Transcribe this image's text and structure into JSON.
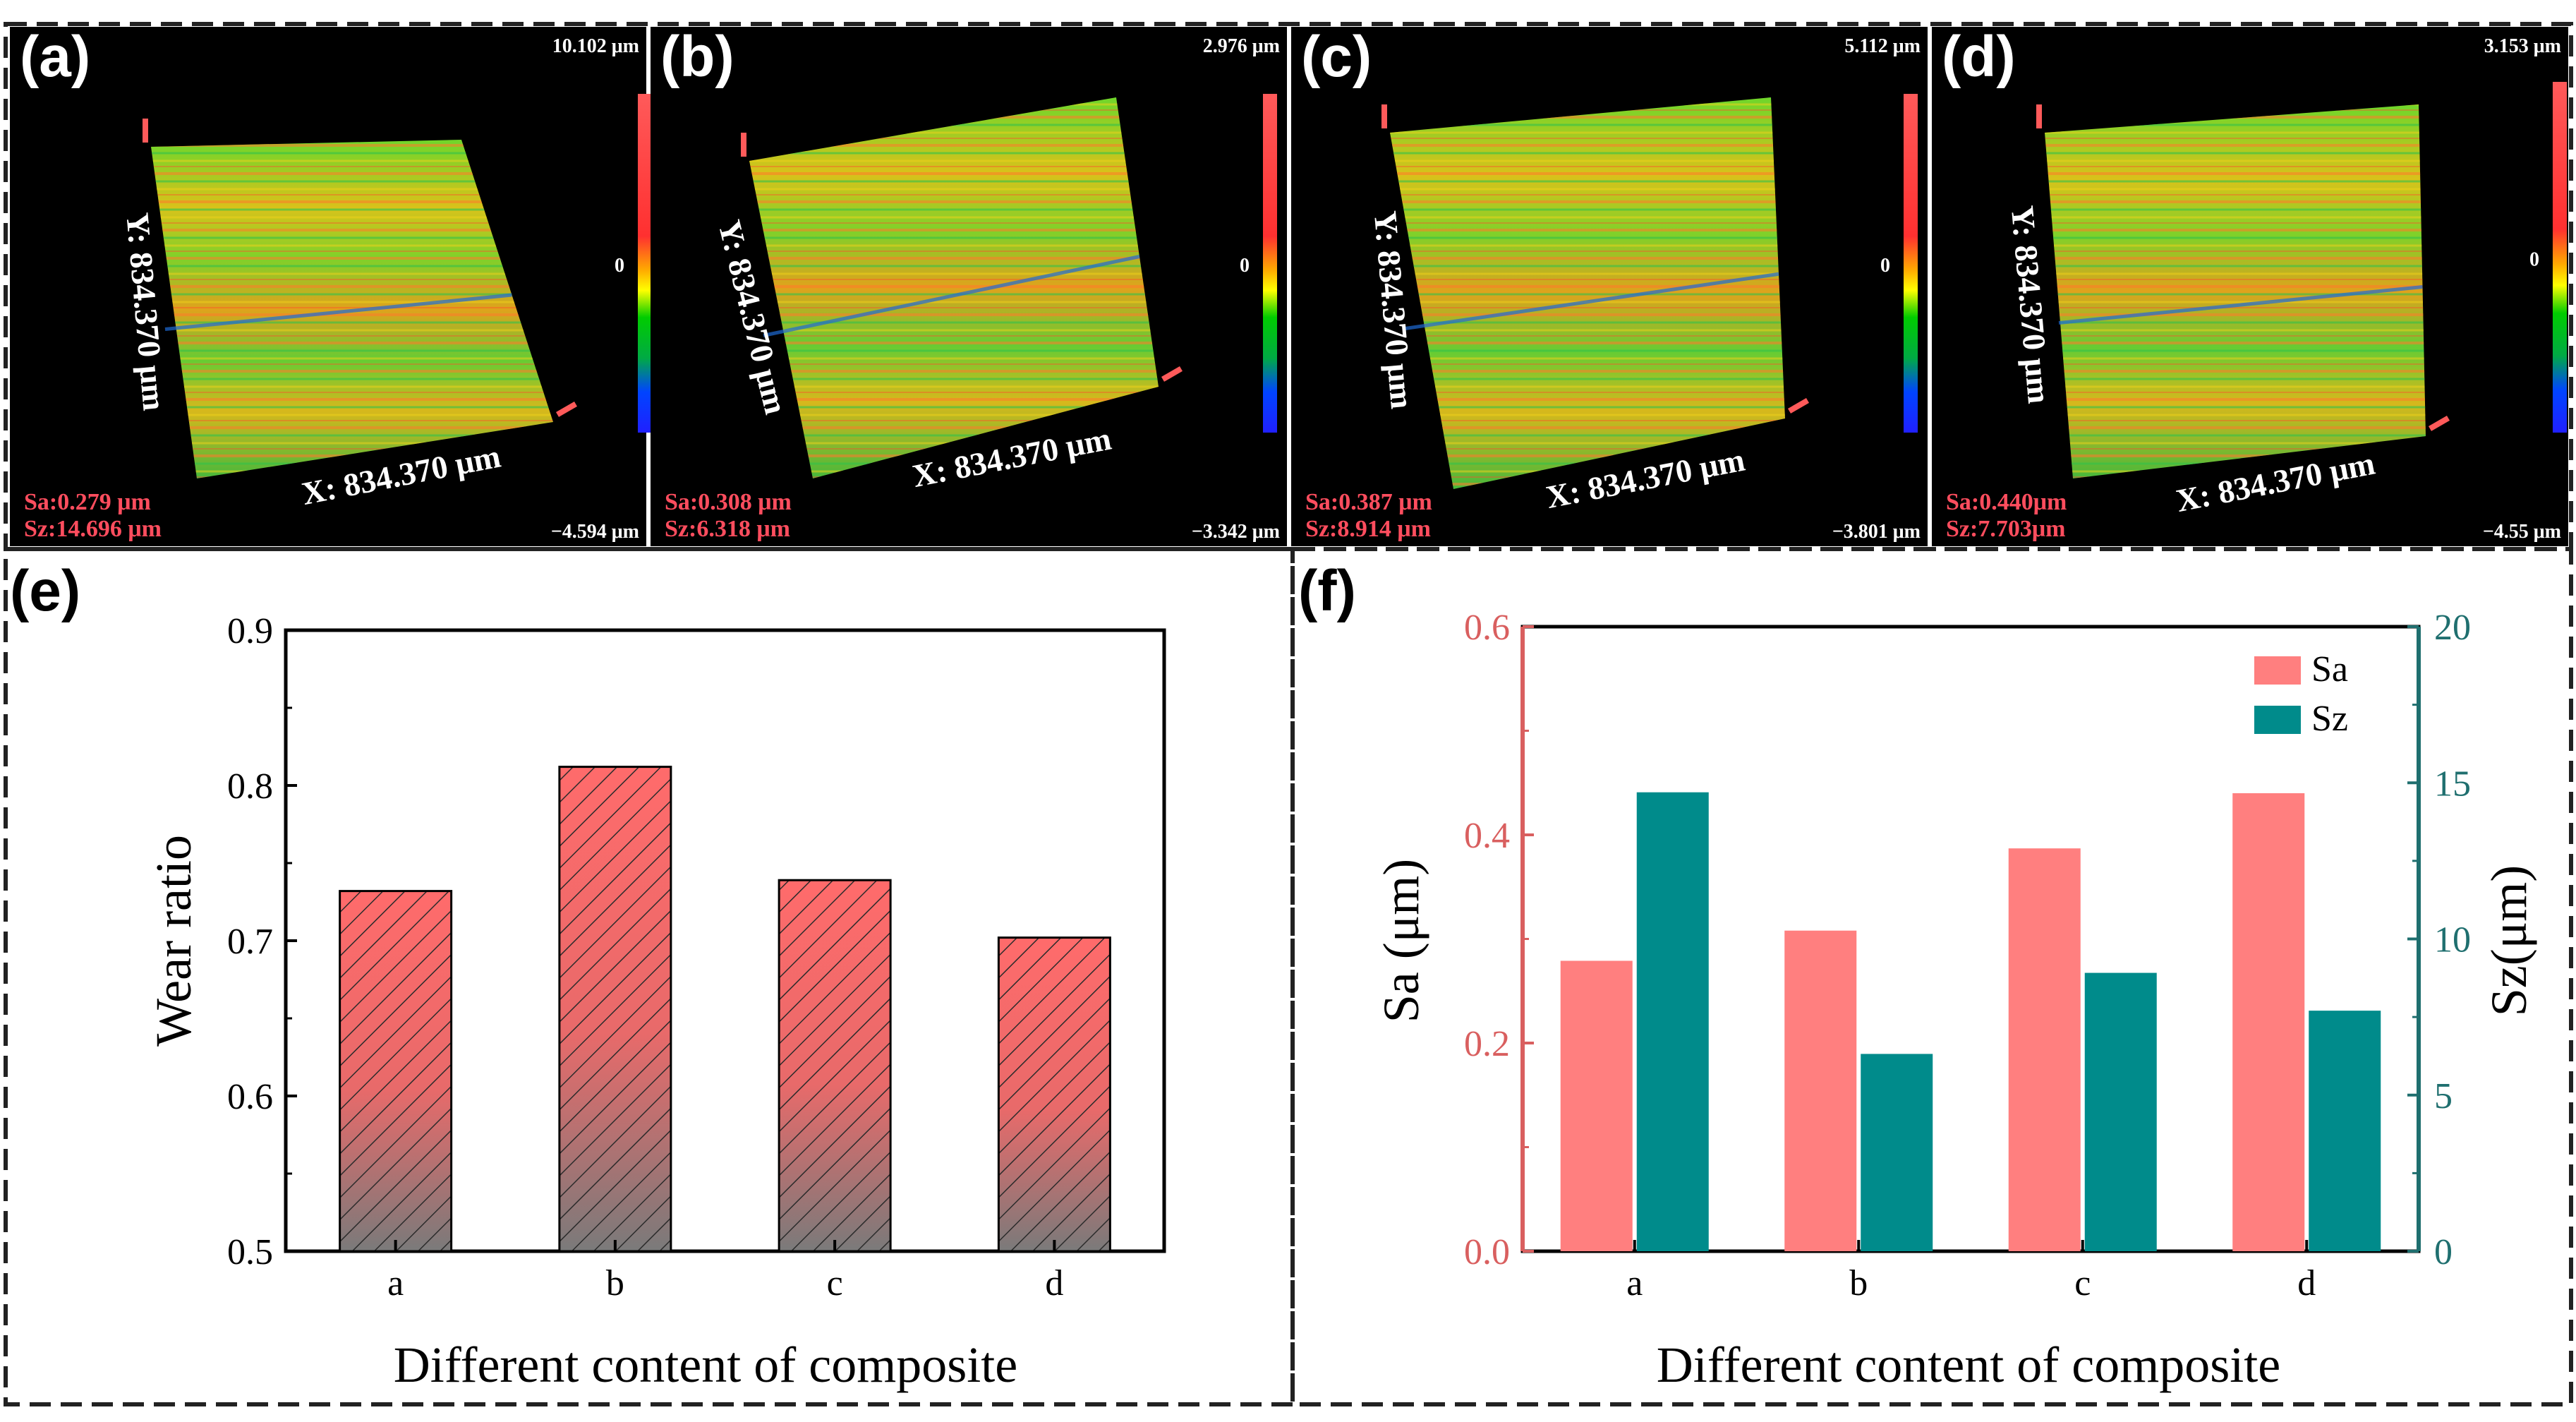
{
  "colors": {
    "sa": "#ff7f7f",
    "sz": "#008b8b",
    "sa_axis": "#d95f5f",
    "sz_axis": "#1f6f6f",
    "measure": "#ff4d5e"
  },
  "top_panels": [
    {
      "label": "(a)",
      "max": "10.102 μm",
      "min": "−4.594 μm",
      "zero": "0",
      "y_axis": "Y: 834.370 μm",
      "x_axis": "X: 834.370 μm",
      "sa": "Sa:0.279 μm",
      "sz": "Sz:14.696 μm"
    },
    {
      "label": "(b)",
      "max": "2.976 μm",
      "min": "−3.342 μm",
      "zero": "0",
      "y_axis": "Y: 834.370 μm",
      "x_axis": "X: 834.370 μm",
      "sa": "Sa:0.308 μm",
      "sz": "Sz:6.318 μm"
    },
    {
      "label": "(c)",
      "max": "5.112 μm",
      "min": "−3.801 μm",
      "zero": "0",
      "y_axis": "Y: 834.370 μm",
      "x_axis": "X: 834.370 μm",
      "sa": "Sa:0.387 μm",
      "sz": "Sz:8.914 μm"
    },
    {
      "label": "(d)",
      "max": "3.153 μm",
      "min": "−4.55 μm",
      "zero": "0",
      "y_axis": "Y: 834.370 μm",
      "x_axis": "X: 834.370 μm",
      "sa": "Sa:0.440μm",
      "sz": "Sz:7.703μm"
    }
  ],
  "chart_data": [
    {
      "type": "bar",
      "panel": "(e)",
      "categories": [
        "a",
        "b",
        "c",
        "d"
      ],
      "values": [
        0.732,
        0.812,
        0.739,
        0.702
      ],
      "ylabel": "Wear ratio",
      "xlabel": "Different content of composite",
      "ylim": [
        0.5,
        0.9
      ],
      "yticks": [
        0.5,
        0.6,
        0.7,
        0.8,
        0.9
      ],
      "ytick_labels": [
        "0.5",
        "0.6",
        "0.7",
        "0.8",
        "0.9"
      ],
      "fill": "hatched gradient red-to-gray"
    },
    {
      "type": "bar",
      "panel": "(f)",
      "categories": [
        "a",
        "b",
        "c",
        "d"
      ],
      "series": [
        {
          "name": "Sa",
          "axis": "left",
          "values": [
            0.279,
            0.308,
            0.387,
            0.44
          ]
        },
        {
          "name": "Sz",
          "axis": "right",
          "values": [
            14.696,
            6.318,
            8.914,
            7.703
          ]
        }
      ],
      "ylabel": "Sa (μm)",
      "ylabel_right": "Sz(μm)",
      "xlabel": "Different content of composite",
      "ylim": [
        0.0,
        0.6
      ],
      "ylim_right": [
        0,
        20
      ],
      "yticks": [
        "0.0",
        "0.2",
        "0.4",
        "0.6"
      ],
      "yticks_right": [
        "0",
        "5",
        "10",
        "15",
        "20"
      ],
      "legend": "top-right"
    }
  ]
}
